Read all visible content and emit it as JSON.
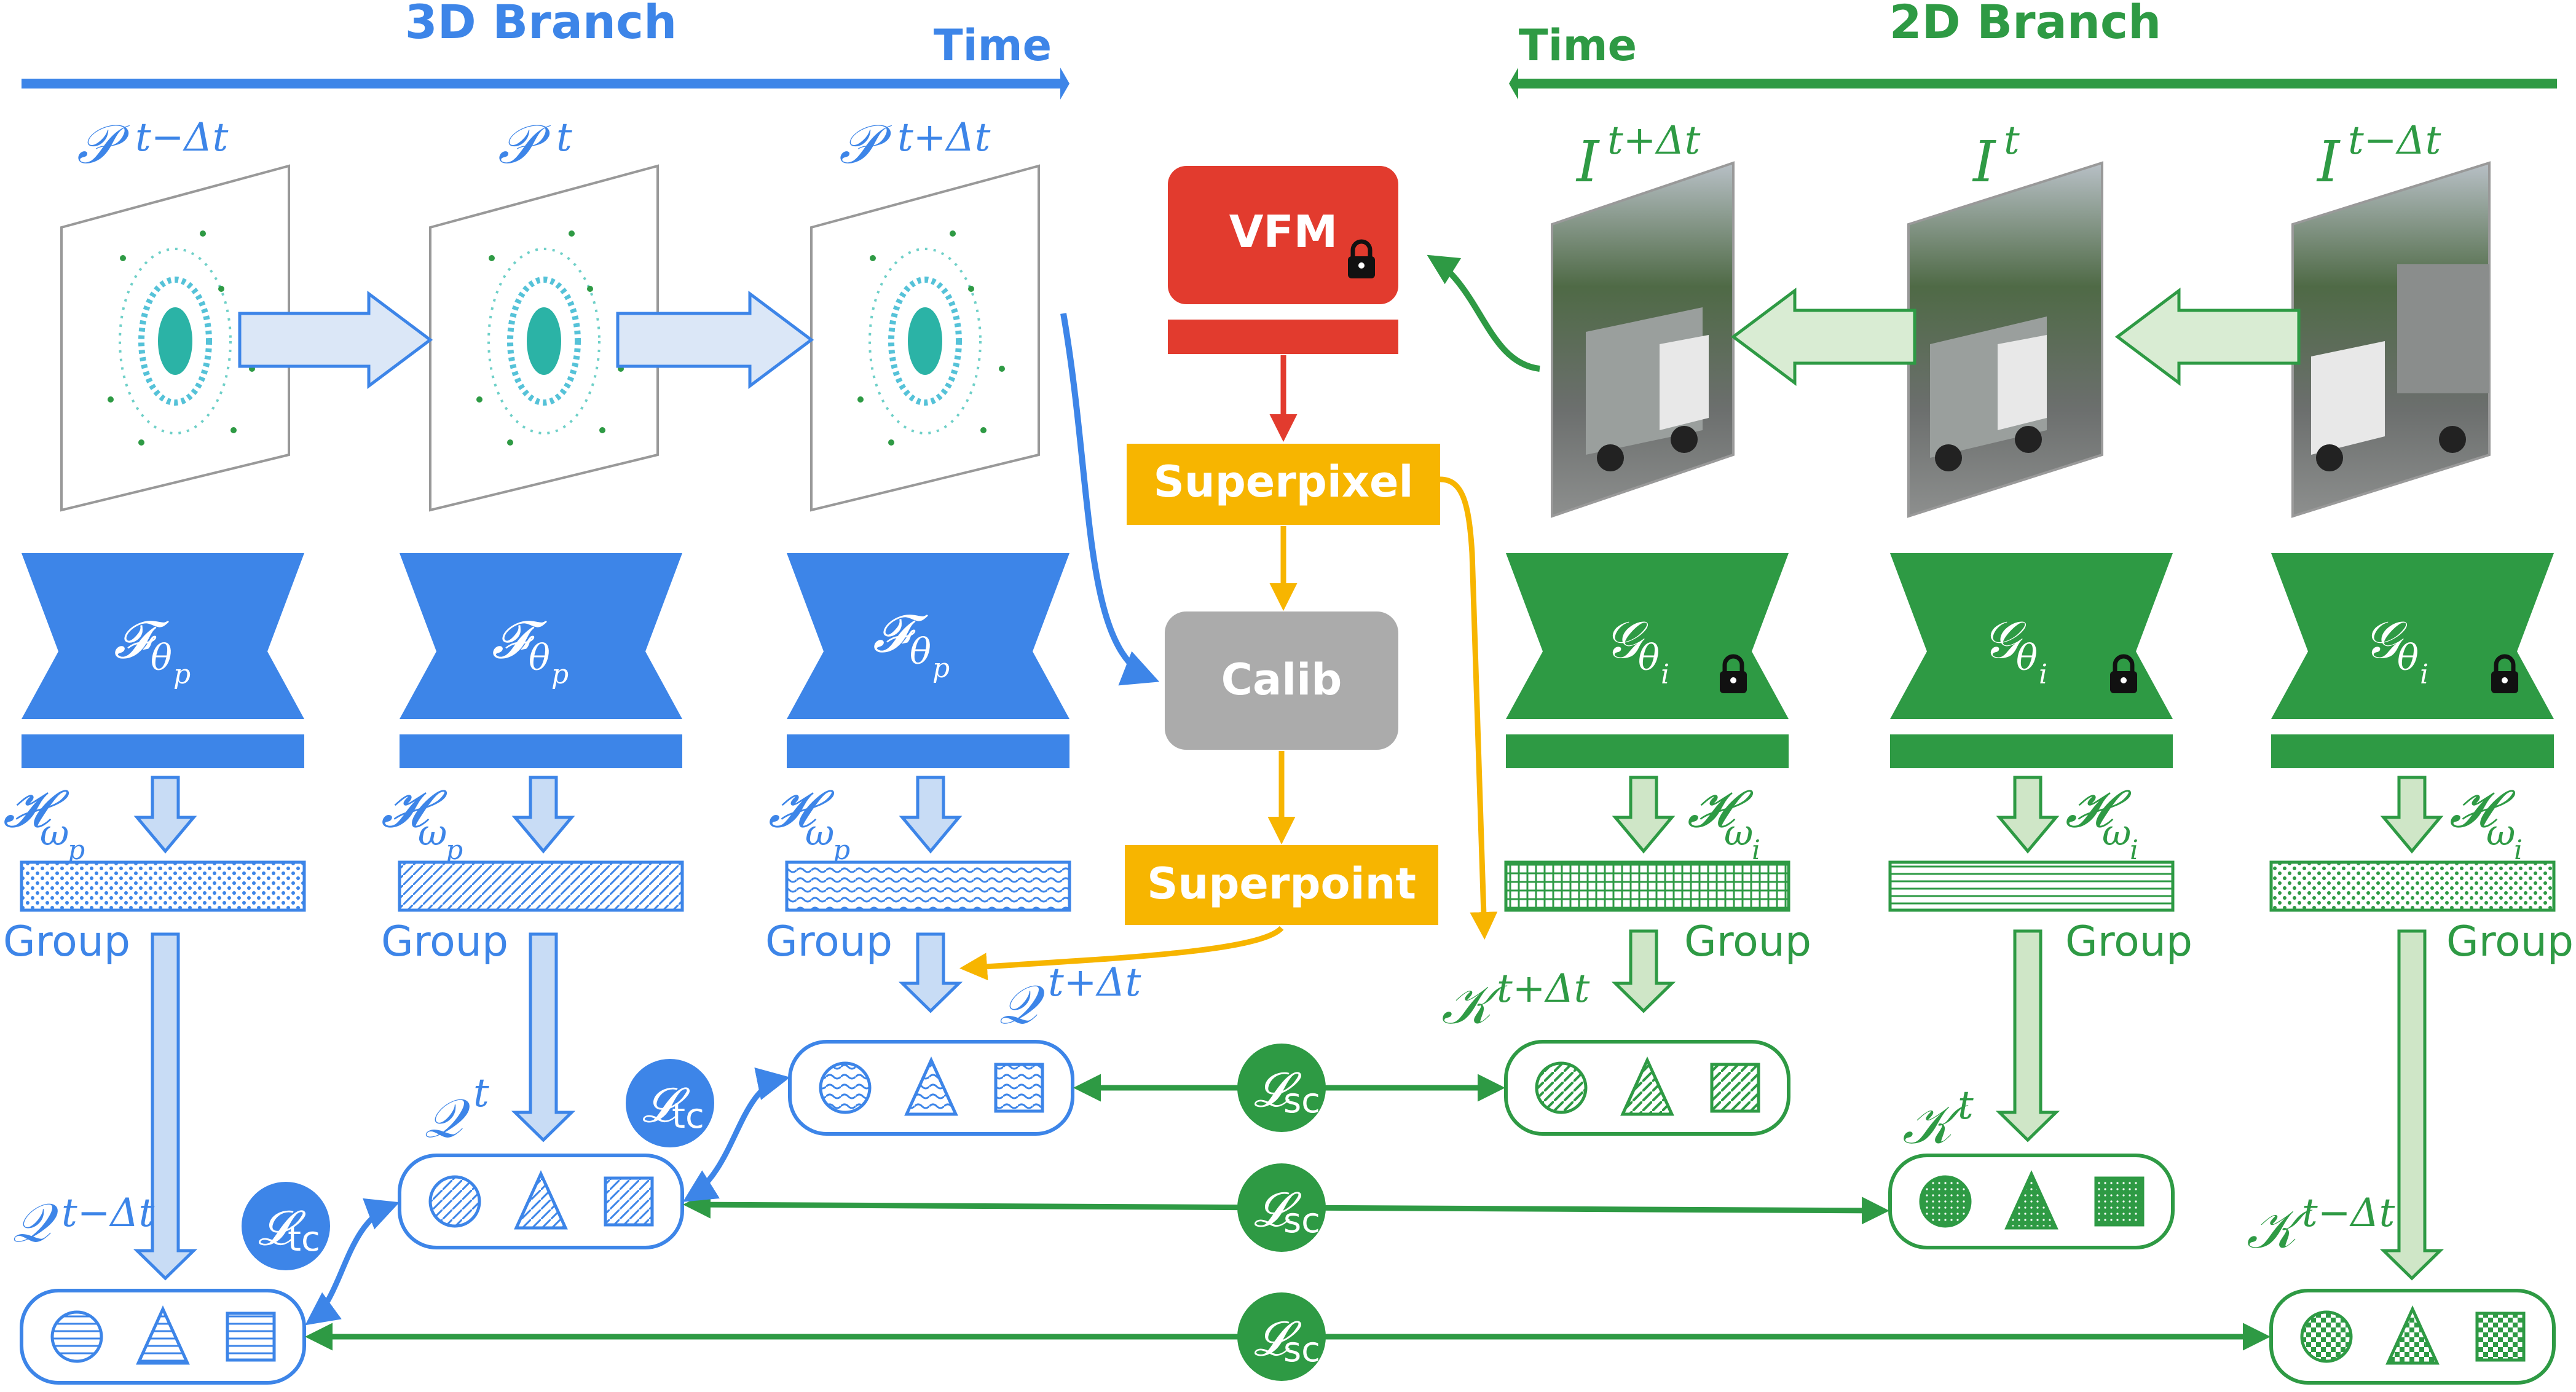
{
  "branch3d": {
    "title": "3D Branch",
    "time": "Time",
    "frames": [
      "𝒫",
      "𝒫",
      "𝒫"
    ],
    "frame_sup": [
      "t−Δt",
      "t",
      "t+Δt"
    ],
    "encoder": "𝓕",
    "encoder_sub": "θ",
    "encoder_subsub": "p",
    "head": "𝓗",
    "head_sub": "ω",
    "head_subsub": "p",
    "group": "Group",
    "query": "𝒬",
    "query_sup": [
      "t−Δt",
      "t",
      "t+Δt"
    ]
  },
  "branch2d": {
    "title": "2D Branch",
    "time": "Time",
    "frames": [
      "I",
      "I",
      "I"
    ],
    "frame_sup": [
      "t+Δt",
      "t",
      "t−Δt"
    ],
    "encoder": "𝒢",
    "encoder_sub": "θ",
    "encoder_subsub": "i",
    "head": "𝓗",
    "head_sub": "ω",
    "head_subsub": "i",
    "group": "Group",
    "key": "𝒦",
    "key_sup": [
      "t+Δt",
      "t",
      "t−Δt"
    ]
  },
  "center": {
    "vfm": "VFM",
    "superpixel": "Superpixel",
    "calib": "Calib",
    "superpoint": "Superpoint"
  },
  "losses": {
    "tc": "𝓛",
    "tc_sub": "tc",
    "sc": "𝓛",
    "sc_sub": "sc"
  },
  "colors": {
    "blue": "#3d85e8",
    "blue_light": "#dbe7f7",
    "green": "#2e9a44",
    "green_light": "#d9ecd3",
    "red": "#e23b2e",
    "yellow": "#f7b500",
    "gray": "#ababab"
  }
}
